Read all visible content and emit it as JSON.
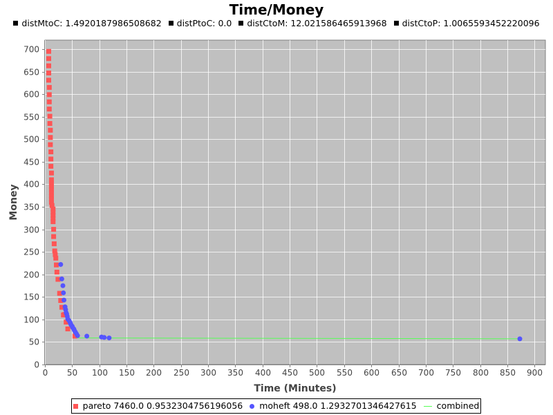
{
  "chart_data": {
    "type": "scatter",
    "title": "Time/Money",
    "subtitle_items": [
      "distMtoC: 1.4920187986508682",
      "distPtoC: 0.0",
      "distCtoM: 12.021586465913968",
      "distCtoP: 1.0065593452220096"
    ],
    "xlabel": "Time (Minutes)",
    "ylabel": "Money",
    "xlim": [
      0,
      920
    ],
    "ylim": [
      0,
      720
    ],
    "x_ticks": [
      0,
      50,
      100,
      150,
      200,
      250,
      300,
      350,
      400,
      450,
      500,
      550,
      600,
      650,
      700,
      750,
      800,
      850,
      900
    ],
    "y_ticks": [
      0,
      50,
      100,
      150,
      200,
      250,
      300,
      350,
      400,
      450,
      500,
      550,
      600,
      650,
      700
    ],
    "grid": true,
    "legend_position": "bottom",
    "background": "#c0c0c0",
    "series": [
      {
        "name": "pareto 7460.0 0.9532304756196056",
        "marker": "square",
        "color": "#ff5555",
        "points": [
          [
            7,
            695
          ],
          [
            7,
            679
          ],
          [
            7,
            663
          ],
          [
            7,
            647
          ],
          [
            7,
            631
          ],
          [
            8,
            615
          ],
          [
            8,
            599
          ],
          [
            8,
            583
          ],
          [
            8,
            567
          ],
          [
            9,
            551
          ],
          [
            9,
            535
          ],
          [
            10,
            520
          ],
          [
            10,
            504
          ],
          [
            10,
            488
          ],
          [
            11,
            472
          ],
          [
            11,
            456
          ],
          [
            11,
            440
          ],
          [
            12,
            425
          ],
          [
            12,
            410
          ],
          [
            12,
            402
          ],
          [
            12,
            395
          ],
          [
            12,
            388
          ],
          [
            12,
            381
          ],
          [
            12,
            374
          ],
          [
            12,
            367
          ],
          [
            12,
            360
          ],
          [
            13,
            353
          ],
          [
            15,
            345
          ],
          [
            15,
            338
          ],
          [
            15,
            331
          ],
          [
            15,
            324
          ],
          [
            15,
            317
          ],
          [
            16,
            300
          ],
          [
            16,
            284
          ],
          [
            17,
            268
          ],
          [
            18,
            252
          ],
          [
            19,
            244
          ],
          [
            20,
            236
          ],
          [
            21,
            221
          ],
          [
            22,
            205
          ],
          [
            24,
            189
          ],
          [
            27,
            158
          ],
          [
            29,
            142
          ],
          [
            31,
            127
          ],
          [
            34,
            110
          ],
          [
            36,
            111
          ],
          [
            39,
            94
          ],
          [
            42,
            79
          ],
          [
            55,
            63
          ]
        ]
      },
      {
        "name": "moheft 498.0 1.2932701346427615",
        "marker": "circle",
        "color": "#5555ff",
        "points": [
          [
            29,
            222
          ],
          [
            31,
            190
          ],
          [
            33,
            175
          ],
          [
            34,
            159
          ],
          [
            35,
            143
          ],
          [
            37,
            128
          ],
          [
            38,
            122
          ],
          [
            39,
            115
          ],
          [
            40,
            112
          ],
          [
            41,
            107
          ],
          [
            42,
            101
          ],
          [
            44,
            98
          ],
          [
            46,
            94
          ],
          [
            47,
            91
          ],
          [
            48,
            88
          ],
          [
            50,
            85
          ],
          [
            51,
            82
          ],
          [
            53,
            79
          ],
          [
            54,
            76
          ],
          [
            56,
            72
          ],
          [
            58,
            68
          ],
          [
            60,
            64
          ],
          [
            77,
            63
          ],
          [
            104,
            61
          ],
          [
            109,
            60
          ],
          [
            118,
            59
          ],
          [
            873,
            57
          ]
        ]
      },
      {
        "name": "combined",
        "marker": "line",
        "color": "#55ff55",
        "points": [
          [
            60,
            59
          ],
          [
            873,
            57
          ]
        ]
      }
    ]
  }
}
